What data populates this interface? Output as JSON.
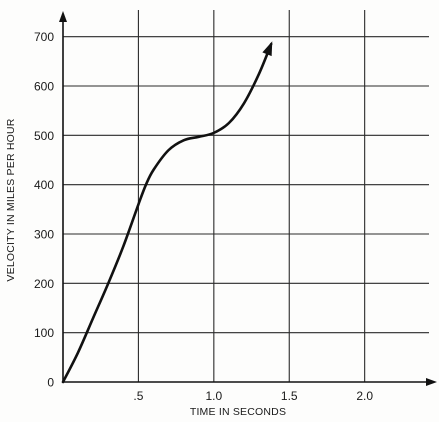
{
  "chart_data": {
    "type": "line",
    "title": "",
    "xlabel": "TIME IN SECONDS",
    "ylabel": "VELOCITY IN MILES PER HOUR",
    "xlim": [
      0,
      2.4
    ],
    "ylim": [
      0,
      750
    ],
    "grid": true,
    "x_ticks": [
      {
        "value": 0.5,
        "label": ".5"
      },
      {
        "value": 1.0,
        "label": "1.0"
      },
      {
        "value": 1.5,
        "label": "1.5"
      },
      {
        "value": 2.0,
        "label": "2.0"
      }
    ],
    "y_ticks": [
      {
        "value": 0,
        "label": "0"
      },
      {
        "value": 100,
        "label": "100"
      },
      {
        "value": 200,
        "label": "200"
      },
      {
        "value": 300,
        "label": "300"
      },
      {
        "value": 400,
        "label": "400"
      },
      {
        "value": 500,
        "label": "500"
      },
      {
        "value": 600,
        "label": "600"
      },
      {
        "value": 700,
        "label": "700"
      }
    ],
    "series": [
      {
        "color": "#111111",
        "arrow_at_end": true,
        "x": [
          0,
          0.1,
          0.2,
          0.3,
          0.4,
          0.5,
          0.55,
          0.6,
          0.7,
          0.8,
          0.9,
          1.0,
          1.1,
          1.2,
          1.3,
          1.38
        ],
        "y": [
          0,
          60,
          130,
          200,
          275,
          360,
          400,
          430,
          470,
          490,
          497,
          505,
          525,
          565,
          625,
          685
        ]
      }
    ]
  }
}
